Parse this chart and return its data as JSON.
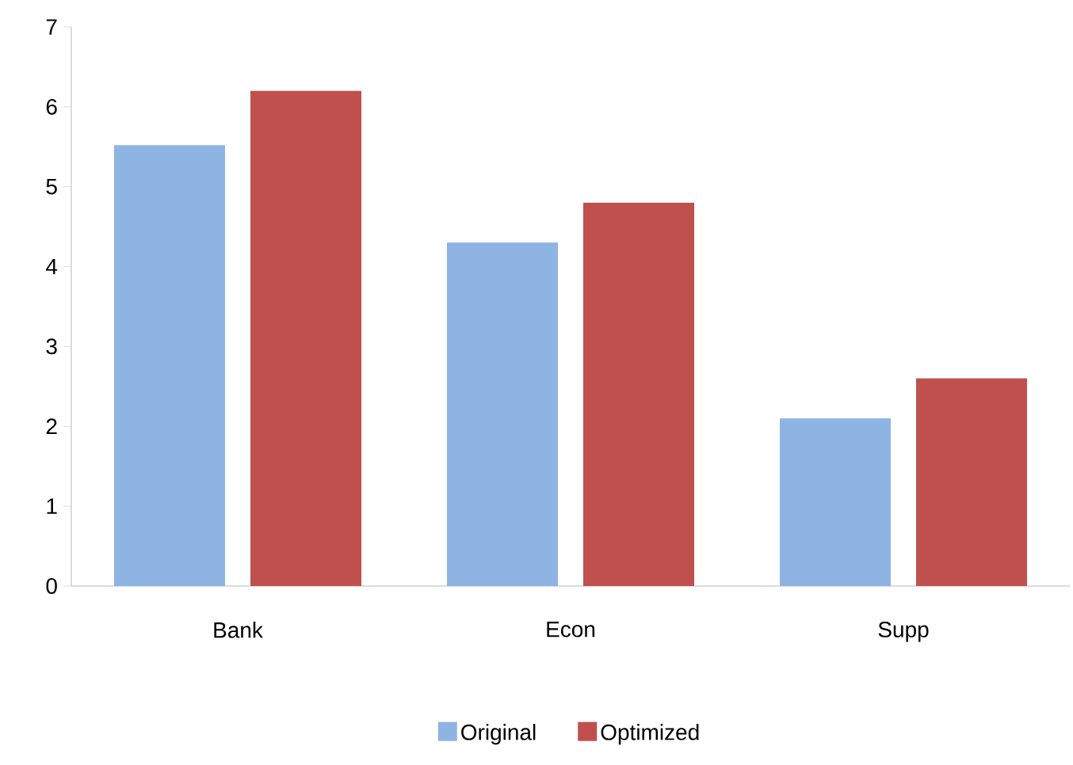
{
  "chart_data": {
    "type": "bar",
    "categories": [
      "Bank",
      "Econ",
      "Supp"
    ],
    "series": [
      {
        "name": "Original",
        "color": "#8eb4e3",
        "values": [
          5.52,
          4.3,
          2.1
        ]
      },
      {
        "name": "Optimized",
        "color": "#c0504d",
        "values": [
          6.2,
          4.8,
          2.6
        ]
      }
    ],
    "ylim": [
      0,
      7
    ],
    "yticks": [
      0,
      1,
      2,
      3,
      4,
      5,
      6,
      7
    ],
    "grid": false,
    "legend": "bottom"
  }
}
